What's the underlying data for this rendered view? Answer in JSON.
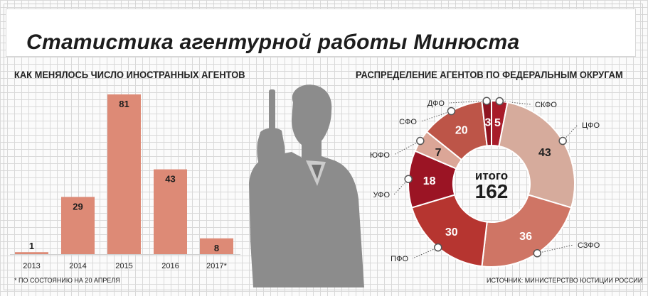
{
  "title": "Статистика агентурной работы Минюста",
  "colors": {
    "bar": "#dd8a76",
    "silhouette": "#8c8c8c",
    "slice_colors": [
      "#a81c2a",
      "#d6ab9c",
      "#cf7565",
      "#b63530",
      "#9b1424",
      "#dba697",
      "#bd5548",
      "#8f1521"
    ]
  },
  "chart_data": [
    {
      "type": "bar",
      "title": "КАК МЕНЯЛОСЬ ЧИСЛО ИНОСТРАННЫХ АГЕНТОВ",
      "categories": [
        "2013",
        "2014",
        "2015",
        "2016",
        "2017*"
      ],
      "values": [
        1,
        29,
        81,
        43,
        8
      ],
      "ylim": [
        0,
        81
      ],
      "footnote": "* ПО СОСТОЯНИЮ НА 20 АПРЕЛЯ"
    },
    {
      "type": "pie",
      "title": "РАСПРЕДЕЛЕНИЕ АГЕНТОВ ПО ФЕДЕРАЛЬНЫМ ОКРУГАМ",
      "center_label": "итого",
      "center_value": "162",
      "slices": [
        {
          "label": "СКФО",
          "value": 5
        },
        {
          "label": "ЦФО",
          "value": 43
        },
        {
          "label": "СЗФО",
          "value": 36
        },
        {
          "label": "ПФО",
          "value": 30
        },
        {
          "label": "УФО",
          "value": 18
        },
        {
          "label": "ЮФО",
          "value": 7
        },
        {
          "label": "СФО",
          "value": 20
        },
        {
          "label": "ДФО",
          "value": 3
        }
      ],
      "source": "ИСТОЧНИК: МИНИСТЕРСТВО ЮСТИЦИИ РОССИИ"
    }
  ]
}
